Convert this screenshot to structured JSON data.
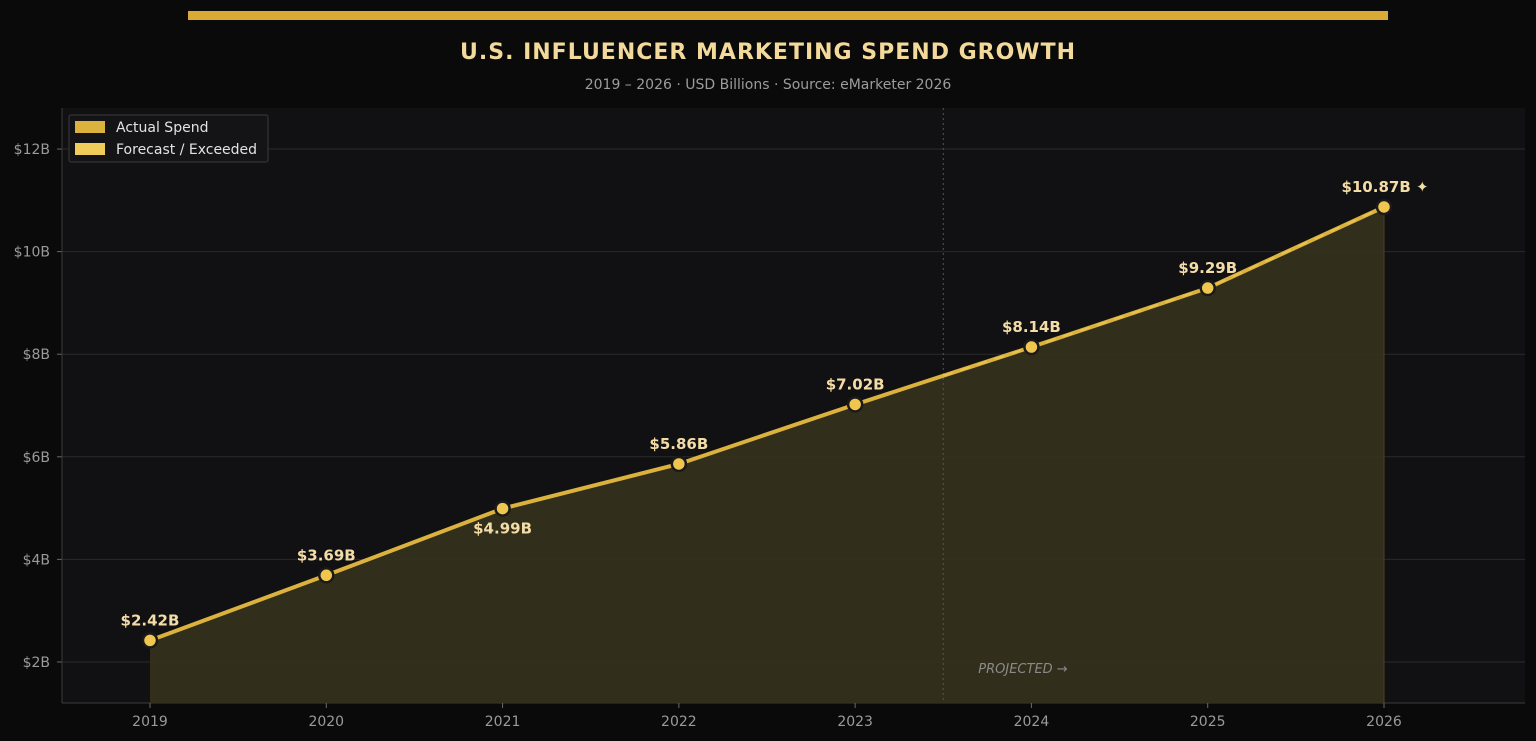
{
  "header": {
    "title": "U.S. INFLUENCER MARKETING SPEND GROWTH",
    "subtitle": "2019 – 2026  ·  USD Billions  ·  Source: eMarketer 2026"
  },
  "colors": {
    "accent": "#d9ab35",
    "line": "#dcb23e",
    "forecast": "#f0cc5a",
    "area": "#35301c",
    "plot_bg": "#111113",
    "page_bg": "#0a0a0a",
    "grid": "#2a2a2c",
    "label": "#f3dca6"
  },
  "chart_data": {
    "type": "line",
    "title": "U.S. INFLUENCER MARKETING SPEND GROWTH",
    "subtitle": "2019 – 2026  ·  USD Billions  ·  Source: eMarketer 2026",
    "x": [
      "2019",
      "2020",
      "2021",
      "2022",
      "2023",
      "2024",
      "2025",
      "2026"
    ],
    "series": [
      {
        "name": "Actual Spend",
        "values": [
          2.42,
          3.69,
          4.99,
          5.86,
          7.02,
          8.14,
          9.29,
          10.87
        ],
        "labels": [
          "$2.42B",
          "$3.69B",
          "$4.99B",
          "$5.86B",
          "$7.02B",
          "$8.14B",
          "$9.29B",
          "$10.87B ✦"
        ]
      }
    ],
    "legend": {
      "placement": "top-left",
      "entries": [
        "Actual Spend",
        "Forecast / Exceeded"
      ]
    },
    "yticks": [
      "$2B",
      "$4B",
      "$6B",
      "$8B",
      "$10B",
      "$12B"
    ],
    "ytick_values": [
      2,
      4,
      6,
      8,
      10,
      12
    ],
    "ylim": [
      1.2,
      12.8
    ],
    "projection_boundary_year": 2023.5,
    "projection_label": "PROJECTED →",
    "grid": true,
    "area_fill": true
  }
}
